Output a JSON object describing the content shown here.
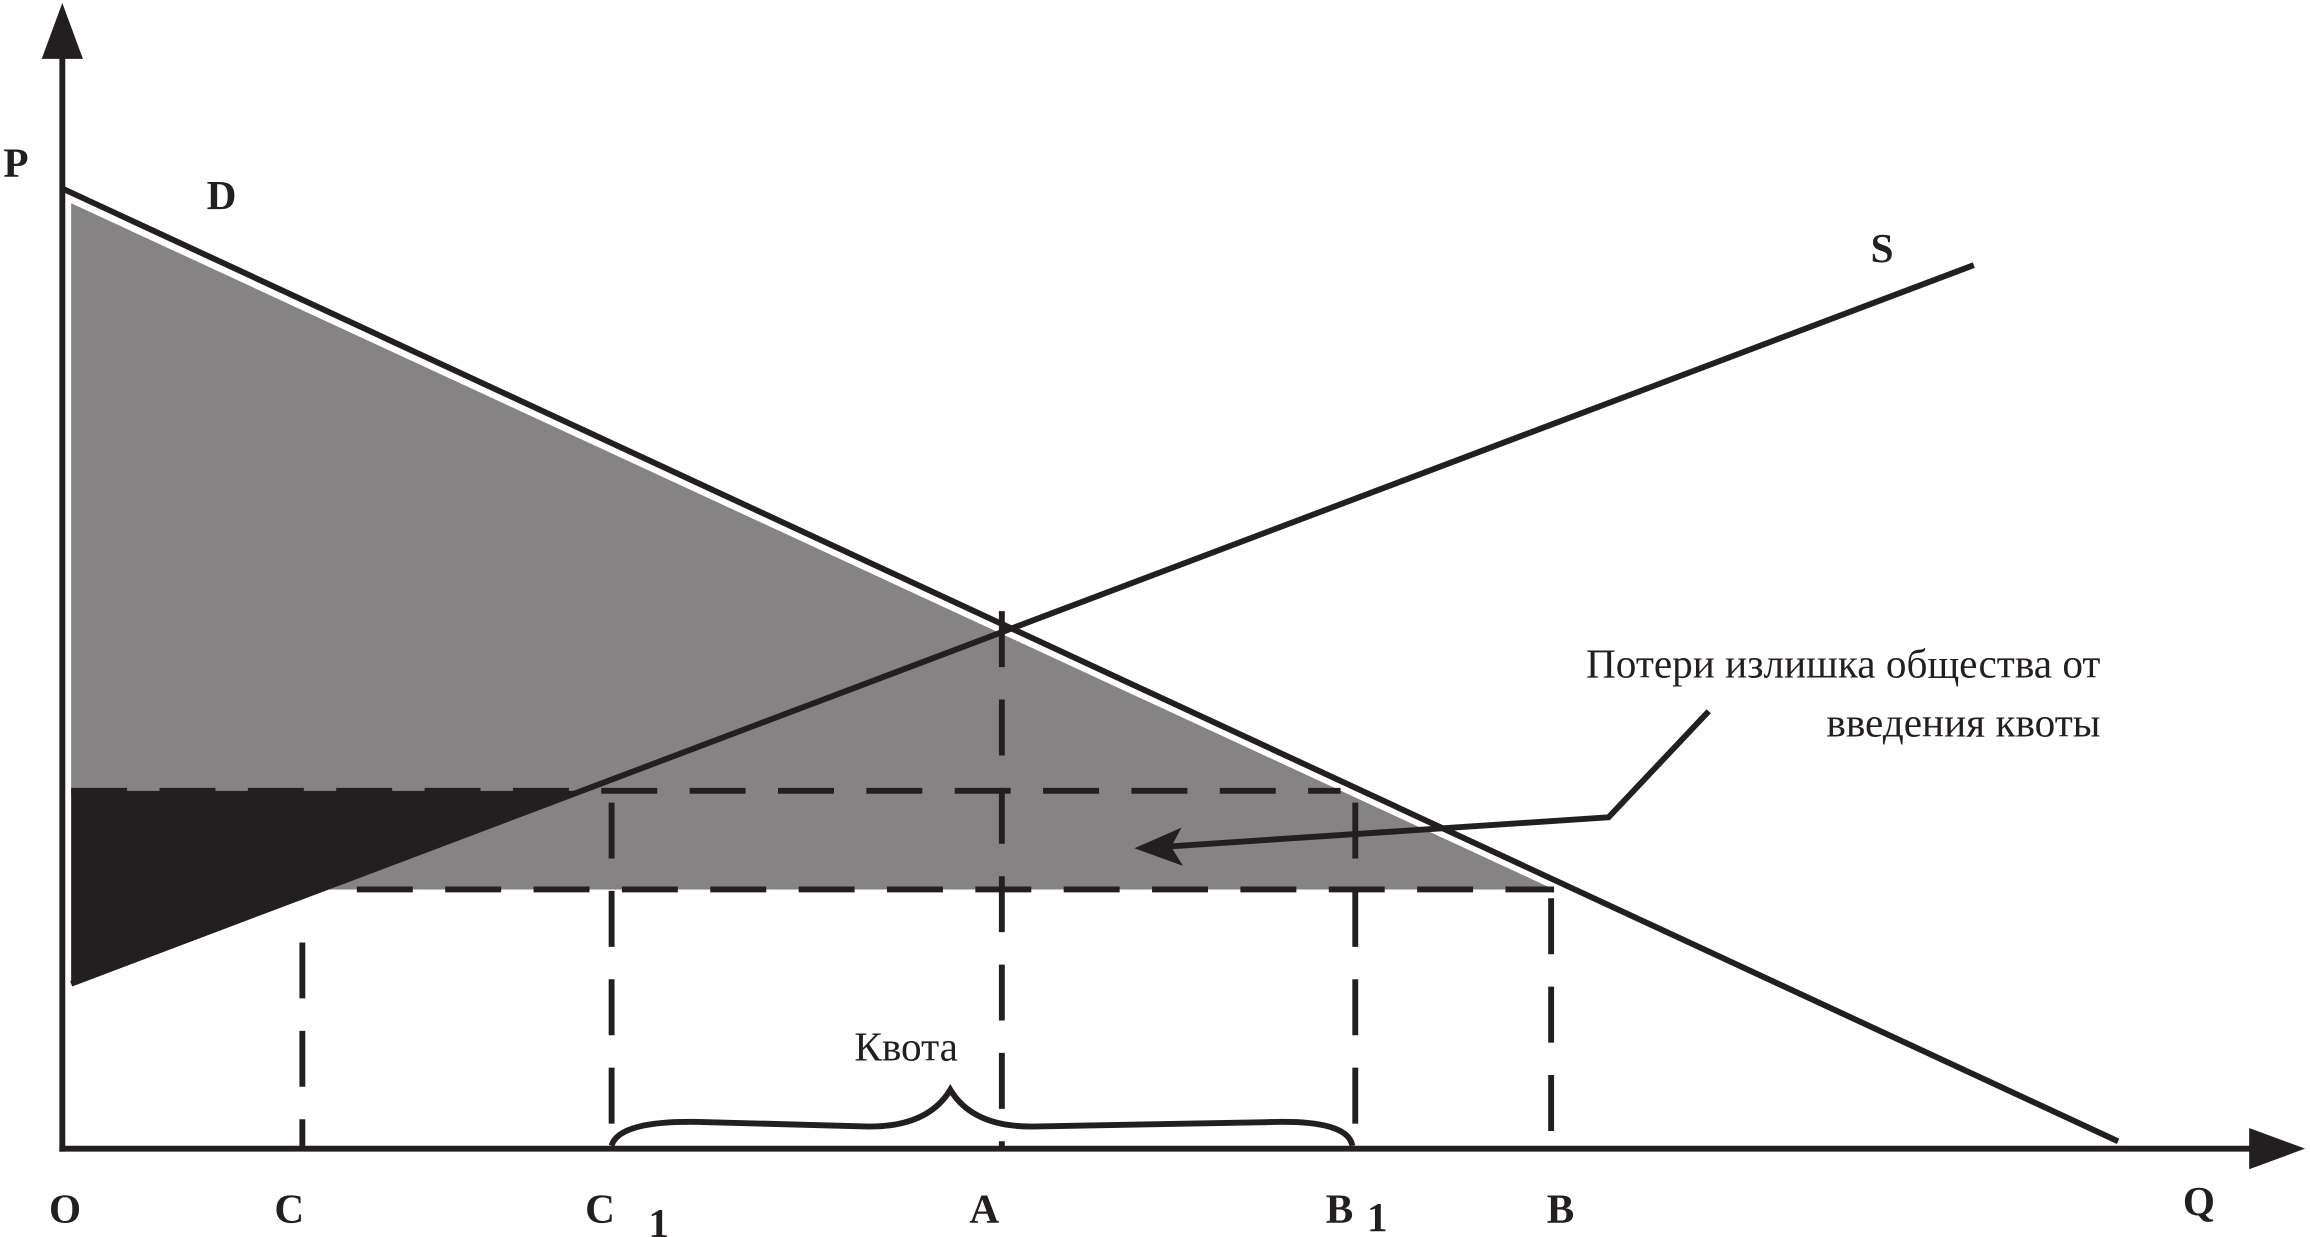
{
  "axes": {
    "y_label": "P",
    "x_label": "Q"
  },
  "curves": {
    "demand": "D",
    "supply": "S"
  },
  "x_points": {
    "origin": "O",
    "c": "C",
    "c1": "C",
    "c1_sub": "1",
    "a": "A",
    "b1": "B",
    "b1_sub": "1",
    "b": "B"
  },
  "annotation": {
    "line1": "Потери излишка общества от",
    "line2": "введения квоты"
  },
  "quota_label": "Квота"
}
